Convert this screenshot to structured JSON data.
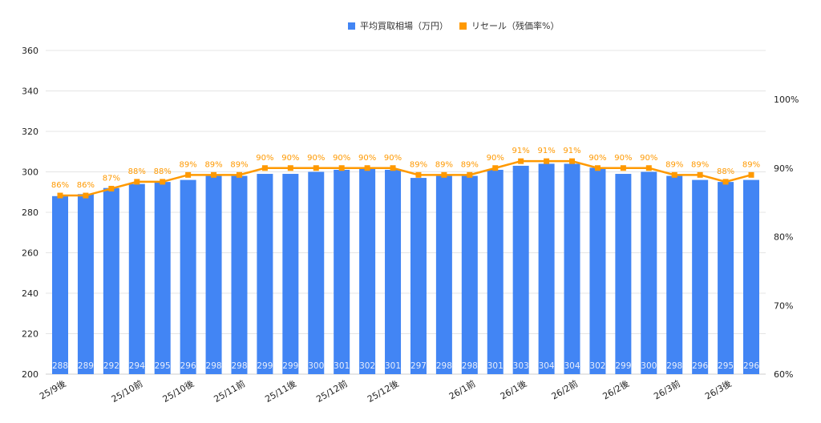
{
  "chart_data": {
    "type": "bar+line",
    "legend": {
      "position": "top"
    },
    "grid": true,
    "categories": [
      "25/9後",
      "",
      "",
      "25/10前",
      "",
      "25/10後",
      "",
      "25/11前",
      "",
      "25/11後",
      "",
      "25/12前",
      "",
      "25/12後",
      "",
      "",
      "26/1前",
      "",
      "26/1後",
      "",
      "26/2前",
      "",
      "26/2後",
      "",
      "26/3前",
      "",
      "26/3後",
      ""
    ],
    "series": [
      {
        "name": "平均買取相場（万円）",
        "type": "bar",
        "axis": "left",
        "color": "#4285f4",
        "values": [
          288,
          289,
          292,
          294,
          295,
          296,
          298,
          298,
          299,
          299,
          300,
          301,
          302,
          301,
          297,
          298,
          298,
          301,
          303,
          304,
          304,
          302,
          299,
          300,
          298,
          296,
          295,
          296
        ]
      },
      {
        "name": "リセール（残価率%）",
        "type": "line",
        "axis": "right",
        "color": "#ff9900",
        "values": [
          86,
          86,
          87,
          88,
          88,
          89,
          89,
          89,
          90,
          90,
          90,
          90,
          90,
          90,
          89,
          89,
          89,
          90,
          91,
          91,
          91,
          90,
          90,
          90,
          89,
          89,
          88,
          89
        ]
      }
    ],
    "y_left": {
      "min": 200,
      "max": 360,
      "ticks": [
        200,
        220,
        240,
        260,
        280,
        300,
        320,
        340,
        360
      ]
    },
    "y_right": {
      "min": 60,
      "max": 100,
      "ticks": [
        60,
        70,
        80,
        90,
        100
      ],
      "suffix": "%"
    }
  }
}
